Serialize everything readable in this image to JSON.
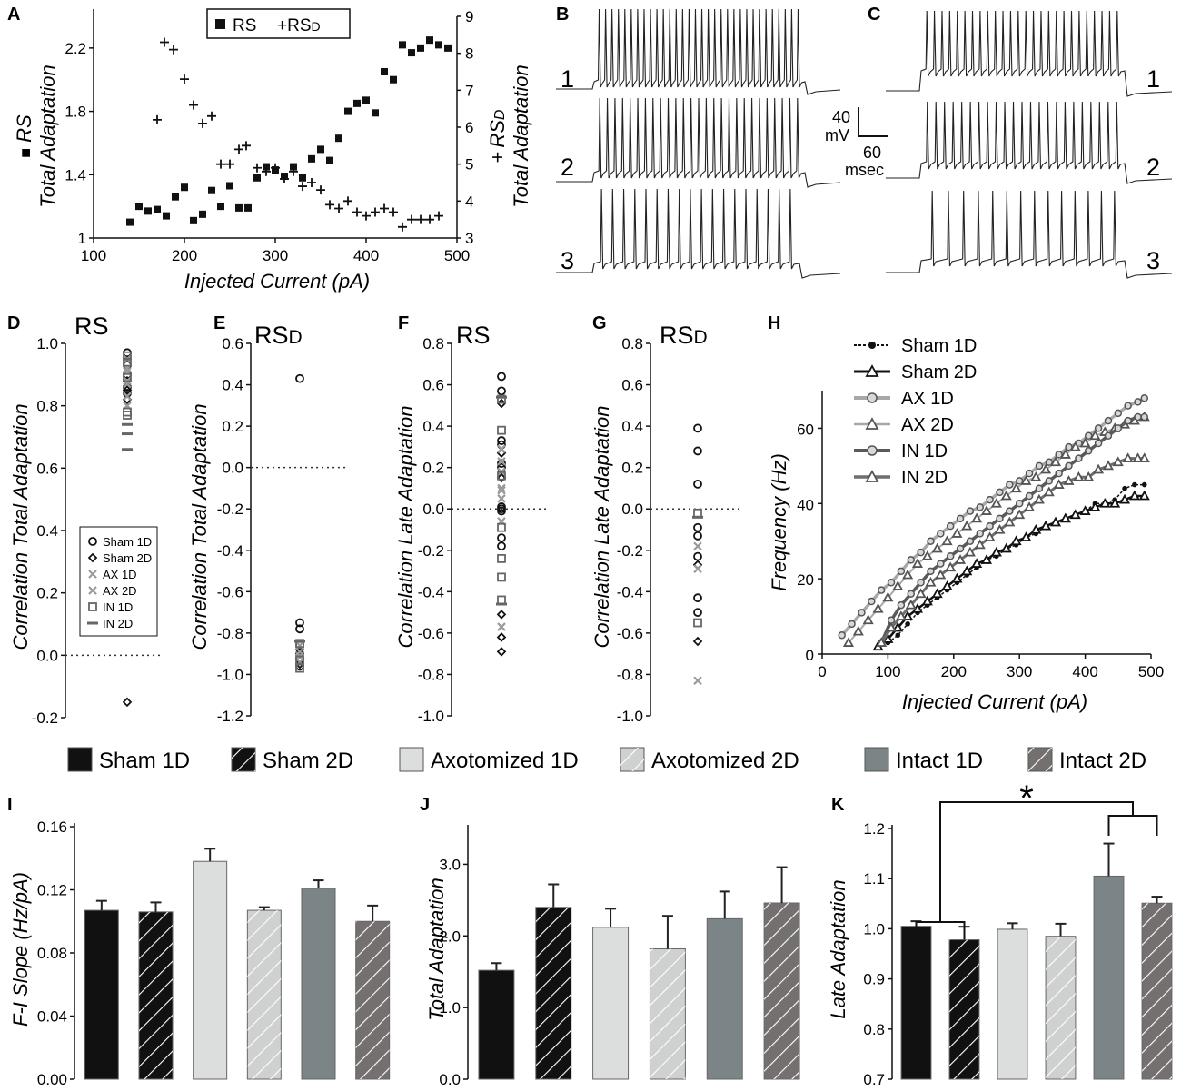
{
  "figure": {
    "panel_labels": [
      "A",
      "B",
      "C",
      "D",
      "E",
      "F",
      "G",
      "H",
      "I",
      "J",
      "K"
    ],
    "group_colors": {
      "Sham": "#111111",
      "AX": "#9a9a9a",
      "IN": "#666666"
    },
    "bar_colors": {
      "Sham 1D": "#111111",
      "Sham 2D": "#111111",
      "Axotomized 1D": "#dcdedd",
      "Axotomized 2D": "#cfd0d0",
      "Intact 1D": "#7b8588",
      "Intact 2D": "#757070"
    }
  },
  "trace_labels": {
    "b": [
      "1",
      "2",
      "3"
    ],
    "c": [
      "1",
      "2",
      "3"
    ],
    "scalebar": {
      "voltage": "40",
      "voltage_unit": "mV",
      "time": "60",
      "time_unit": "msec"
    }
  },
  "bar_legend": [
    "Sham 1D",
    "Sham 2D",
    "Axotomized 1D",
    "Axotomized 2D",
    "Intact 1D",
    "Intact 2D"
  ],
  "chart_data": [
    {
      "id": "A",
      "type": "scatter",
      "legend": [
        "RS",
        "+RS",
        "D"
      ],
      "xlabel": "Injected Current  (pA)",
      "ylabel_left": [
        "RS",
        "Total Adaptation"
      ],
      "ylabel_left_marker": "■",
      "ylabel_right": [
        "RS",
        "D",
        "Total Adaptation"
      ],
      "ylabel_right_marker": "+",
      "xlim": [
        100,
        500
      ],
      "xticks": [
        "100",
        "200",
        "300",
        "400",
        "500"
      ],
      "ylim_left": [
        1.0,
        2.4
      ],
      "yticks_left": [
        "1",
        "1.4",
        "1.8",
        "2.2"
      ],
      "ylim_right": [
        3,
        9
      ],
      "yticks_right": [
        "3",
        "4",
        "5",
        "6",
        "7",
        "8",
        "9"
      ],
      "series": [
        {
          "name": "RS",
          "axis": "left",
          "marker": "square",
          "x": [
            140,
            150,
            160,
            170,
            180,
            190,
            200,
            210,
            220,
            230,
            240,
            250,
            260,
            270,
            280,
            290,
            300,
            310,
            320,
            330,
            340,
            350,
            360,
            370,
            380,
            390,
            400,
            410,
            420,
            430,
            440,
            450,
            460,
            470,
            480,
            490
          ],
          "y": [
            1.1,
            1.2,
            1.17,
            1.18,
            1.14,
            1.26,
            1.32,
            1.11,
            1.15,
            1.3,
            1.2,
            1.33,
            1.19,
            1.19,
            1.38,
            1.45,
            1.43,
            1.39,
            1.45,
            1.38,
            1.5,
            1.56,
            1.49,
            1.63,
            1.8,
            1.85,
            1.87,
            1.79,
            2.05,
            2.0,
            2.22,
            2.17,
            2.2,
            2.25,
            2.22,
            2.2
          ]
        },
        {
          "name": "RSD",
          "axis": "right",
          "marker": "plus",
          "x": [
            170,
            178,
            188,
            200,
            210,
            220,
            230,
            240,
            250,
            260,
            268,
            280,
            290,
            300,
            310,
            320,
            330,
            340,
            350,
            360,
            370,
            380,
            390,
            400,
            410,
            420,
            430,
            440,
            450,
            460,
            470,
            480
          ],
          "y": [
            6.2,
            8.3,
            8.1,
            7.3,
            6.6,
            6.1,
            6.3,
            5.0,
            5.0,
            5.4,
            5.5,
            4.9,
            4.8,
            4.9,
            4.6,
            4.8,
            4.4,
            4.5,
            4.3,
            3.9,
            3.8,
            4.0,
            3.7,
            3.6,
            3.7,
            3.8,
            3.7,
            3.3,
            3.5,
            3.5,
            3.5,
            3.6
          ]
        }
      ]
    },
    {
      "id": "D",
      "type": "scatter",
      "title": "RS",
      "ylabel": "Correlation Total Adaptation",
      "ylim": [
        -0.2,
        1.0
      ],
      "yticks": [
        "-0.2",
        "0.0",
        "0.2",
        "0.4",
        "0.6",
        "0.8",
        "1.0"
      ],
      "legend": [
        "Sham 1D",
        "Sham 2D",
        "AX 1D",
        "AX 2D",
        "IN 1D",
        "IN 2D"
      ],
      "series": [
        {
          "name": "Sham 1D",
          "marker": "circle",
          "values": [
            0.97,
            0.93,
            0.9,
            0.86,
            0.84
          ]
        },
        {
          "name": "Sham 2D",
          "marker": "diamond",
          "values": [
            0.88,
            0.85,
            0.82,
            -0.15
          ]
        },
        {
          "name": "AX 1D",
          "marker": "x",
          "values": [
            0.95,
            0.91,
            0.87,
            0.83
          ]
        },
        {
          "name": "AX 2D",
          "marker": "x",
          "values": [
            0.92,
            0.88,
            0.8
          ]
        },
        {
          "name": "IN 1D",
          "marker": "square",
          "values": [
            0.96,
            0.94,
            0.89,
            0.78,
            0.77
          ]
        },
        {
          "name": "IN 2D",
          "marker": "dash",
          "values": [
            0.74,
            0.71,
            0.66
          ]
        }
      ]
    },
    {
      "id": "E",
      "type": "scatter",
      "title": "RS",
      "title_sub": "D",
      "ylabel": "Correlation  Total Adaptation",
      "ylim": [
        -1.2,
        0.6
      ],
      "yticks": [
        "-1.2",
        "-1.0",
        "-0.8",
        "-0.6",
        "-0.4",
        "-0.2",
        "0.0",
        "0.2",
        "0.4",
        "0.6"
      ],
      "series": [
        {
          "name": "Sham 1D",
          "marker": "circle",
          "values": [
            0.43,
            -0.75,
            -0.78,
            -0.86,
            -0.9,
            -0.93,
            -0.96
          ]
        },
        {
          "name": "Sham 2D",
          "marker": "diamond",
          "values": [
            -0.88,
            -0.92,
            -0.95
          ]
        },
        {
          "name": "AX 1D",
          "marker": "x",
          "values": [
            -0.89,
            -0.94
          ]
        },
        {
          "name": "AX 2D",
          "marker": "x",
          "values": [
            -0.86,
            -0.91
          ]
        },
        {
          "name": "IN 1D",
          "marker": "square",
          "values": [
            -0.85,
            -0.93,
            -0.97
          ]
        },
        {
          "name": "IN 2D",
          "marker": "dash",
          "values": [
            -0.84
          ]
        }
      ]
    },
    {
      "id": "F",
      "type": "scatter",
      "title": "RS",
      "ylabel": "Correlation Late Adaptation",
      "ylim": [
        -1.0,
        0.8
      ],
      "yticks": [
        "-1.0",
        "-0.8",
        "-0.6",
        "-0.4",
        "-0.2",
        "0.0",
        "0.2",
        "0.4",
        "0.6",
        "0.8"
      ],
      "series": [
        {
          "name": "Sham 1D",
          "marker": "circle",
          "values": [
            0.64,
            0.57,
            0.33,
            0.31,
            0.22,
            0.2,
            0.01,
            0.0,
            -0.01,
            -0.14,
            -0.18
          ]
        },
        {
          "name": "Sham 2D",
          "marker": "diamond",
          "values": [
            0.51,
            0.27,
            0.15,
            -0.51,
            -0.62,
            -0.69
          ]
        },
        {
          "name": "AX 1D",
          "marker": "x",
          "values": [
            0.29,
            0.1,
            0.05,
            -0.06,
            -0.57
          ]
        },
        {
          "name": "AX 2D",
          "marker": "x",
          "values": [
            0.23,
            0.18,
            0.09
          ]
        },
        {
          "name": "IN 1D",
          "marker": "square",
          "values": [
            0.53,
            0.38,
            0.16,
            -0.09,
            -0.24,
            -0.33,
            -0.44
          ]
        },
        {
          "name": "IN 2D",
          "marker": "dash",
          "values": [
            0.54,
            -0.46
          ]
        }
      ]
    },
    {
      "id": "G",
      "type": "scatter",
      "title": "RS",
      "title_sub": "D",
      "ylabel": "Correlation Late Adaptation",
      "ylim": [
        -1.0,
        0.8
      ],
      "yticks": [
        "-1.0",
        "-0.8",
        "-0.6",
        "-0.4",
        "-0.2",
        "0.0",
        "0.2",
        "0.4",
        "0.6",
        "0.8"
      ],
      "series": [
        {
          "name": "Sham 1D",
          "marker": "circle",
          "values": [
            0.39,
            0.28,
            0.12,
            -0.09,
            -0.13,
            -0.23,
            -0.43,
            -0.5
          ]
        },
        {
          "name": "Sham 2D",
          "marker": "diamond",
          "values": [
            -0.27,
            -0.64
          ]
        },
        {
          "name": "AX 1D",
          "marker": "x",
          "values": [
            -0.83
          ]
        },
        {
          "name": "AX 2D",
          "marker": "x",
          "values": [
            -0.18,
            -0.29
          ]
        },
        {
          "name": "IN 1D",
          "marker": "square",
          "values": [
            -0.02,
            -0.55
          ]
        },
        {
          "name": "IN 2D",
          "marker": "dash",
          "values": [
            -0.04
          ]
        }
      ]
    },
    {
      "id": "H",
      "type": "line",
      "xlabel": "Injected Current  (pA)",
      "ylabel": "Frequency  (Hz)",
      "xlim": [
        0,
        500
      ],
      "ylim": [
        0,
        70
      ],
      "xticks": [
        "0",
        "100",
        "200",
        "300",
        "400",
        "500"
      ],
      "yticks": [
        "0",
        "20",
        "40",
        "60"
      ],
      "legend": [
        "Sham 1D",
        "Sham 2D",
        "AX 1D",
        "AX 2D",
        "IN 1D",
        "IN 2D"
      ],
      "series": [
        {
          "name": "Sham 1D",
          "marker": "dot",
          "x": [
            100,
            115,
            130,
            145,
            160,
            175,
            190,
            205,
            220,
            235,
            250,
            265,
            280,
            295,
            310,
            325,
            340,
            355,
            370,
            385,
            400,
            415,
            430,
            445,
            460,
            475,
            490
          ],
          "y": [
            3,
            5,
            8,
            11,
            13,
            15,
            17,
            19,
            21,
            23,
            25,
            26,
            28,
            29,
            31,
            32,
            34,
            35,
            36,
            37,
            38,
            40,
            40,
            41,
            44,
            45,
            45
          ]
        },
        {
          "name": "Sham 2D",
          "marker": "triangle",
          "x": [
            85,
            100,
            115,
            130,
            145,
            160,
            175,
            190,
            205,
            220,
            235,
            250,
            265,
            280,
            295,
            310,
            325,
            340,
            355,
            370,
            385,
            400,
            415,
            430,
            445,
            460,
            475,
            490
          ],
          "y": [
            2,
            4,
            7,
            10,
            12,
            14,
            16,
            18,
            20,
            22,
            24,
            25,
            27,
            28,
            30,
            31,
            33,
            34,
            35,
            36,
            37,
            38,
            39,
            40,
            40,
            41,
            42,
            42
          ]
        },
        {
          "name": "AX 1D",
          "marker": "circle",
          "x": [
            30,
            45,
            60,
            75,
            90,
            105,
            120,
            135,
            150,
            165,
            180,
            195,
            210,
            225,
            240,
            255,
            270,
            285,
            300,
            315,
            330,
            345,
            360,
            375,
            390,
            405,
            420,
            435,
            450,
            465,
            480,
            490
          ],
          "y": [
            5,
            8,
            11,
            14,
            17,
            19,
            22,
            25,
            27,
            30,
            32,
            34,
            36,
            38,
            39,
            41,
            43,
            45,
            46,
            48,
            50,
            51,
            53,
            55,
            56,
            58,
            60,
            62,
            64,
            66,
            67,
            68
          ]
        },
        {
          "name": "AX 2D",
          "marker": "triangle",
          "x": [
            40,
            55,
            70,
            85,
            100,
            115,
            130,
            145,
            160,
            175,
            190,
            205,
            220,
            235,
            250,
            265,
            280,
            295,
            310,
            325,
            340,
            355,
            370,
            385,
            400,
            415,
            430,
            445,
            460,
            475,
            490
          ],
          "y": [
            3,
            6,
            9,
            12,
            15,
            18,
            21,
            24,
            26,
            28,
            30,
            32,
            34,
            36,
            38,
            40,
            42,
            44,
            46,
            47,
            49,
            51,
            53,
            55,
            56,
            58,
            59,
            60,
            61,
            62,
            63
          ]
        },
        {
          "name": "IN 1D",
          "marker": "circle",
          "x": [
            90,
            105,
            120,
            135,
            150,
            165,
            180,
            195,
            210,
            225,
            240,
            255,
            270,
            285,
            300,
            315,
            330,
            345,
            360,
            375,
            390,
            405,
            420,
            435,
            450,
            465,
            480,
            490
          ],
          "y": [
            3,
            9,
            13,
            16,
            19,
            22,
            24,
            26,
            28,
            30,
            32,
            34,
            36,
            38,
            40,
            42,
            44,
            46,
            48,
            50,
            52,
            54,
            56,
            58,
            60,
            62,
            63,
            63
          ]
        },
        {
          "name": "IN 2D",
          "marker": "triangle",
          "x": [
            90,
            105,
            120,
            135,
            150,
            165,
            180,
            195,
            210,
            225,
            240,
            255,
            270,
            285,
            300,
            315,
            330,
            345,
            360,
            375,
            390,
            405,
            420,
            435,
            450,
            465,
            480,
            490
          ],
          "y": [
            3,
            7,
            10,
            13,
            16,
            19,
            21,
            23,
            25,
            27,
            29,
            31,
            33,
            35,
            37,
            39,
            41,
            43,
            45,
            46,
            47,
            47,
            49,
            50,
            51,
            52,
            52,
            52
          ]
        }
      ]
    },
    {
      "id": "I",
      "type": "bar",
      "ylabel": "F-I Slope  (Hz/pA)",
      "ylim": [
        0,
        0.16
      ],
      "yticks": [
        "0.00",
        "0.04",
        "0.08",
        "0.12",
        "0.16"
      ],
      "categories": [
        "Sham 1D",
        "Sham 2D",
        "Axotomized 1D",
        "Axotomized 2D",
        "Intact 1D",
        "Intact 2D"
      ],
      "values": [
        0.107,
        0.106,
        0.138,
        0.107,
        0.121,
        0.1
      ],
      "errors": [
        0.006,
        0.006,
        0.008,
        0.002,
        0.005,
        0.01
      ]
    },
    {
      "id": "J",
      "type": "bar",
      "ylabel": "Total Adaptation",
      "ylim": [
        0,
        3.5
      ],
      "yticks": [
        "0.0",
        "1.0",
        "2.0",
        "3.0"
      ],
      "categories": [
        "Sham 1D",
        "Sham 2D",
        "Axotomized 1D",
        "Axotomized 2D",
        "Intact 1D",
        "Intact 2D"
      ],
      "values": [
        1.52,
        2.4,
        2.12,
        1.82,
        2.24,
        2.46
      ],
      "errors": [
        0.1,
        0.32,
        0.26,
        0.46,
        0.38,
        0.5
      ]
    },
    {
      "id": "K",
      "type": "bar",
      "ylabel": "Late Adaptation",
      "ylim": [
        0.7,
        1.2
      ],
      "yticks": [
        "0.7",
        "0.8",
        "0.9",
        "1.0",
        "1.1",
        "1.2"
      ],
      "categories": [
        "Sham 1D",
        "Sham 2D",
        "Axotomized 1D",
        "Axotomized 2D",
        "Intact 1D",
        "Intact 2D"
      ],
      "values": [
        1.005,
        0.978,
        0.999,
        0.985,
        1.105,
        1.051
      ],
      "errors": [
        0.01,
        0.026,
        0.012,
        0.025,
        0.065,
        0.013
      ],
      "annotation": "*"
    }
  ]
}
